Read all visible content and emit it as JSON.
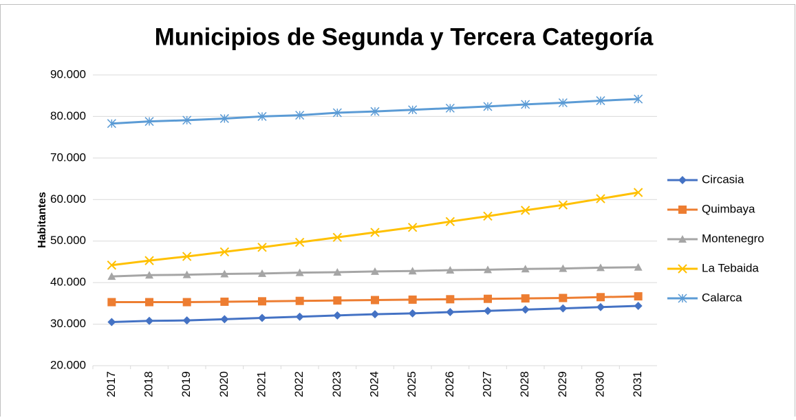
{
  "chart_data": {
    "type": "line",
    "title": "Municipios de Segunda y Tercera Categoría",
    "y_label": "Habitantes",
    "categories": [
      "2017",
      "2018",
      "2019",
      "2020",
      "2021",
      "2022",
      "2023",
      "2024",
      "2025",
      "2026",
      "2027",
      "2028",
      "2029",
      "2030",
      "2031"
    ],
    "series": [
      {
        "name": "Circasia",
        "color": "#4472c4",
        "marker": "diamond",
        "values": [
          30500,
          30800,
          30900,
          31200,
          31500,
          31800,
          32100,
          32400,
          32600,
          32900,
          33200,
          33500,
          33800,
          34100,
          34400
        ]
      },
      {
        "name": "Quimbaya",
        "color": "#ed7d31",
        "marker": "square",
        "values": [
          35300,
          35300,
          35300,
          35400,
          35500,
          35600,
          35700,
          35800,
          35900,
          36000,
          36100,
          36200,
          36300,
          36500,
          36700
        ]
      },
      {
        "name": "Montenegro",
        "color": "#a5a5a5",
        "marker": "triangle",
        "values": [
          41500,
          41800,
          41900,
          42100,
          42200,
          42400,
          42500,
          42700,
          42800,
          43000,
          43100,
          43300,
          43400,
          43600,
          43700
        ]
      },
      {
        "name": "La Tebaida",
        "color": "#ffc000",
        "marker": "x",
        "values": [
          44200,
          45300,
          46300,
          47400,
          48500,
          49700,
          50900,
          52100,
          53300,
          54700,
          56000,
          57400,
          58700,
          60200,
          61700
        ]
      },
      {
        "name": "Calarca",
        "color": "#5b9bd5",
        "marker": "star",
        "values": [
          78300,
          78800,
          79100,
          79500,
          80000,
          80300,
          80900,
          81200,
          81600,
          82000,
          82400,
          82900,
          83300,
          83800,
          84200
        ]
      }
    ],
    "ylim": [
      20000,
      90000
    ],
    "yticks": [
      {
        "value": 20000,
        "label": "20.000"
      },
      {
        "value": 30000,
        "label": "30.000"
      },
      {
        "value": 40000,
        "label": "40.000"
      },
      {
        "value": 50000,
        "label": "50.000"
      },
      {
        "value": 60000,
        "label": "60.000"
      },
      {
        "value": 70000,
        "label": "70.000"
      },
      {
        "value": 80000,
        "label": "80.000"
      },
      {
        "value": 90000,
        "label": "90.000"
      }
    ],
    "grid": true,
    "legend": "right"
  }
}
